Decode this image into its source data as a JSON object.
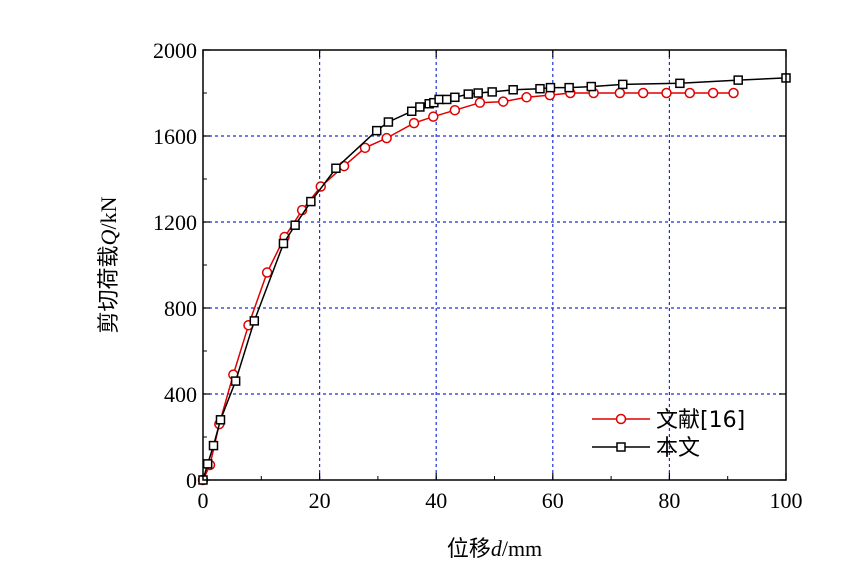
{
  "chart_data": {
    "type": "line",
    "xlabel_prefix": "位移",
    "xlabel_var": "d",
    "xlabel_unit": "/mm",
    "ylabel_prefix": "剪切荷载",
    "ylabel_var": "Q",
    "ylabel_unit": "/kN",
    "xlim": [
      0,
      100
    ],
    "ylim": [
      0,
      2000
    ],
    "xticks": [
      0,
      20,
      40,
      60,
      80,
      100
    ],
    "yticks": [
      0,
      400,
      800,
      1200,
      1600,
      2000
    ],
    "grid": true,
    "legend_position": "bottom-right",
    "series": [
      {
        "name": "文献[16]",
        "color": "#e00000",
        "marker": "circle",
        "x": [
          0,
          1.2,
          2.8,
          5.2,
          7.8,
          11,
          14,
          17,
          20.2,
          24.2,
          27.8,
          31.5,
          36.2,
          39.5,
          43.2,
          47.5,
          51.5,
          55.5,
          59.5,
          63,
          67,
          71.5,
          75.5,
          79.5,
          83.5,
          87.5,
          91
        ],
        "y": [
          0,
          70,
          260,
          490,
          720,
          965,
          1130,
          1255,
          1365,
          1460,
          1545,
          1590,
          1660,
          1690,
          1720,
          1755,
          1760,
          1780,
          1790,
          1800,
          1800,
          1800,
          1800,
          1800,
          1800,
          1800,
          1800
        ]
      },
      {
        "name": "本文",
        "color": "#000000",
        "marker": "square",
        "x": [
          0,
          0.8,
          1.8,
          3.0,
          5.6,
          8.8,
          13.8,
          15.8,
          18.5,
          22.8,
          29.8,
          31.8,
          35.8,
          37.2,
          38.8,
          39.6,
          40.5,
          41.8,
          43.2,
          45.5,
          47.2,
          49.6,
          53.2,
          57.8,
          59.6,
          62.8,
          66.6,
          72.0,
          81.8,
          91.8,
          100
        ],
        "y": [
          0,
          75,
          160,
          280,
          460,
          740,
          1100,
          1185,
          1295,
          1450,
          1625,
          1665,
          1715,
          1735,
          1750,
          1755,
          1770,
          1770,
          1780,
          1795,
          1800,
          1805,
          1815,
          1820,
          1825,
          1825,
          1830,
          1840,
          1845,
          1860,
          1870
        ]
      }
    ]
  }
}
